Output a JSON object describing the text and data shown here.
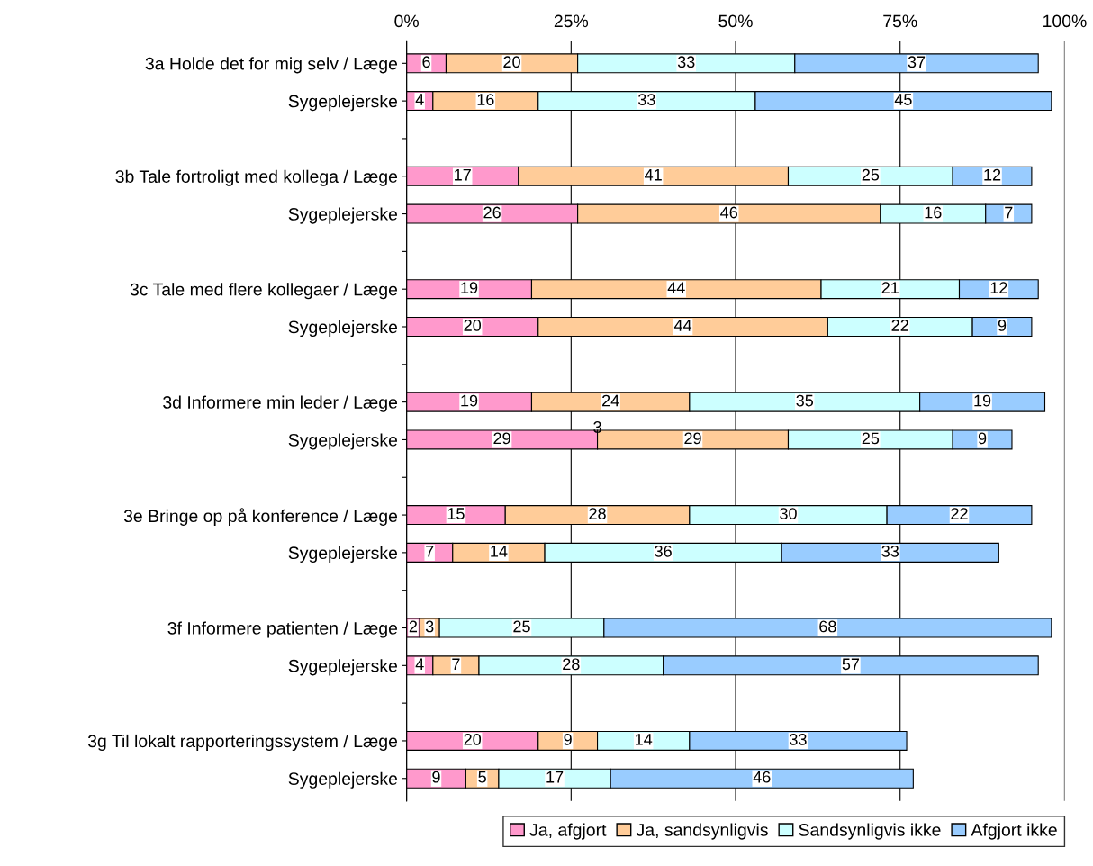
{
  "chart_data": {
    "type": "bar",
    "orientation": "horizontal",
    "stacked": true,
    "data_labels": true,
    "grid": "x",
    "legend": "bottom",
    "categories": [
      "3a Holde det for mig selv / Læge",
      "Sygeplejerske",
      null,
      "3b Tale fortroligt med kollega / Læge",
      "Sygeplejerske",
      null,
      "3c Tale med flere kollegaer / Læge",
      "Sygeplejerske",
      null,
      "3d Informere min leder / Læge",
      "Sygeplejerske",
      null,
      "3e Bringe op på konference / Læge",
      "Sygeplejerske",
      null,
      "3f Informere patienten / Læge",
      "Sygeplejerske",
      null,
      "3g Til lokalt rapporteringssystem / Læge",
      "Sygeplejerske"
    ],
    "series": [
      {
        "name": "Ja, afgjort",
        "color": "#ff99cc",
        "values": [
          6,
          4,
          null,
          17,
          26,
          null,
          19,
          20,
          null,
          19,
          29,
          null,
          15,
          7,
          null,
          2,
          4,
          null,
          20,
          9
        ]
      },
      {
        "name": "Ja, sandsynligvis",
        "color": "#ffcc99",
        "values": [
          20,
          16,
          null,
          41,
          46,
          null,
          44,
          44,
          null,
          24,
          29,
          null,
          28,
          14,
          null,
          3,
          7,
          null,
          9,
          5
        ]
      },
      {
        "name": "Sandsynligvis ikke",
        "color": "#ccffff",
        "values": [
          33,
          33,
          null,
          25,
          16,
          null,
          21,
          22,
          null,
          35,
          25,
          null,
          30,
          36,
          null,
          25,
          28,
          null,
          14,
          17
        ]
      },
      {
        "name": "Afgjort ikke",
        "color": "#99ccff",
        "values": [
          37,
          45,
          null,
          12,
          7,
          null,
          12,
          9,
          null,
          19,
          9,
          null,
          22,
          33,
          null,
          68,
          57,
          null,
          33,
          46
        ]
      }
    ],
    "xlim": [
      0,
      100
    ],
    "xticks": [
      {
        "value": 0,
        "label": "0%"
      },
      {
        "value": 25,
        "label": "25%"
      },
      {
        "value": 50,
        "label": "50%"
      },
      {
        "value": 75,
        "label": "75%"
      },
      {
        "value": 100,
        "label": "100%"
      }
    ],
    "annotations": [
      "3"
    ]
  }
}
